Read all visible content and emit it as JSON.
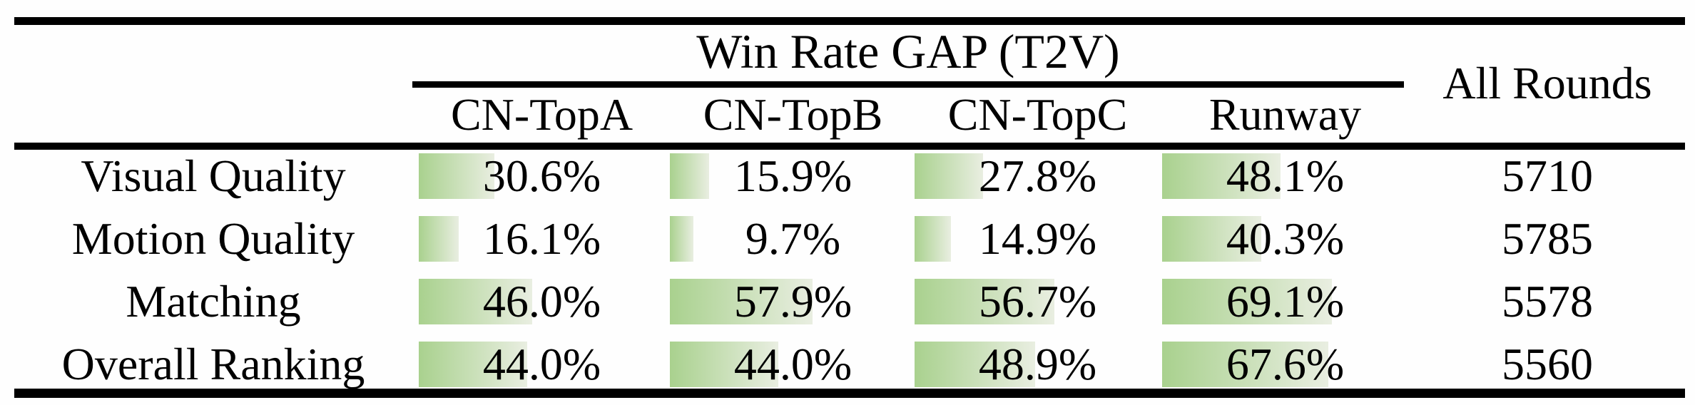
{
  "theme": {
    "bar-green": "#a9d18e",
    "bar-fade": "#e9eee1",
    "rule-color": "#000000"
  },
  "table": {
    "span_header": "Win Rate GAP (T2V)",
    "all_rounds_header": "All Rounds",
    "columns": [
      {
        "label": "CN-TopA"
      },
      {
        "label": "CN-TopB"
      },
      {
        "label": "CN-TopC"
      },
      {
        "label": "Runway"
      }
    ],
    "rows": [
      {
        "label": "Visual Quality",
        "cells": [
          {
            "value": 30.6,
            "label": "30.6%"
          },
          {
            "value": 15.9,
            "label": "15.9%"
          },
          {
            "value": 27.8,
            "label": "27.8%"
          },
          {
            "value": 48.1,
            "label": "48.1%"
          }
        ],
        "all_rounds": "5710"
      },
      {
        "label": "Motion Quality",
        "cells": [
          {
            "value": 16.1,
            "label": "16.1%"
          },
          {
            "value": 9.7,
            "label": "9.7%"
          },
          {
            "value": 14.9,
            "label": "14.9%"
          },
          {
            "value": 40.3,
            "label": "40.3%"
          }
        ],
        "all_rounds": "5785"
      },
      {
        "label": "Matching",
        "cells": [
          {
            "value": 46.0,
            "label": "46.0%"
          },
          {
            "value": 57.9,
            "label": "57.9%"
          },
          {
            "value": 56.7,
            "label": "56.7%"
          },
          {
            "value": 69.1,
            "label": "69.1%"
          }
        ],
        "all_rounds": "5578"
      },
      {
        "label": "Overall Ranking",
        "cells": [
          {
            "value": 44.0,
            "label": "44.0%"
          },
          {
            "value": 44.0,
            "label": "44.0%"
          },
          {
            "value": 48.9,
            "label": "48.9%"
          },
          {
            "value": 67.6,
            "label": "67.6%"
          }
        ],
        "all_rounds": "5560"
      }
    ]
  },
  "chart_data": {
    "type": "table",
    "title": "Win Rate GAP (T2V)",
    "categories": [
      "Visual Quality",
      "Motion Quality",
      "Matching",
      "Overall Ranking"
    ],
    "series": [
      {
        "name": "CN-TopA",
        "values": [
          30.6,
          16.1,
          46.0,
          44.0
        ],
        "unit": "%"
      },
      {
        "name": "CN-TopB",
        "values": [
          15.9,
          9.7,
          57.9,
          44.0
        ],
        "unit": "%"
      },
      {
        "name": "CN-TopC",
        "values": [
          27.8,
          14.9,
          56.7,
          48.9
        ],
        "unit": "%"
      },
      {
        "name": "Runway",
        "values": [
          48.1,
          40.3,
          69.1,
          67.6
        ],
        "unit": "%"
      },
      {
        "name": "All Rounds",
        "values": [
          5710,
          5785,
          5578,
          5560
        ],
        "unit": "count"
      }
    ],
    "bar_scale": {
      "min": 0,
      "max": 100
    },
    "bar_style": "in-cell horizontal data bar, green-to-pale-green gradient, left-anchored"
  }
}
